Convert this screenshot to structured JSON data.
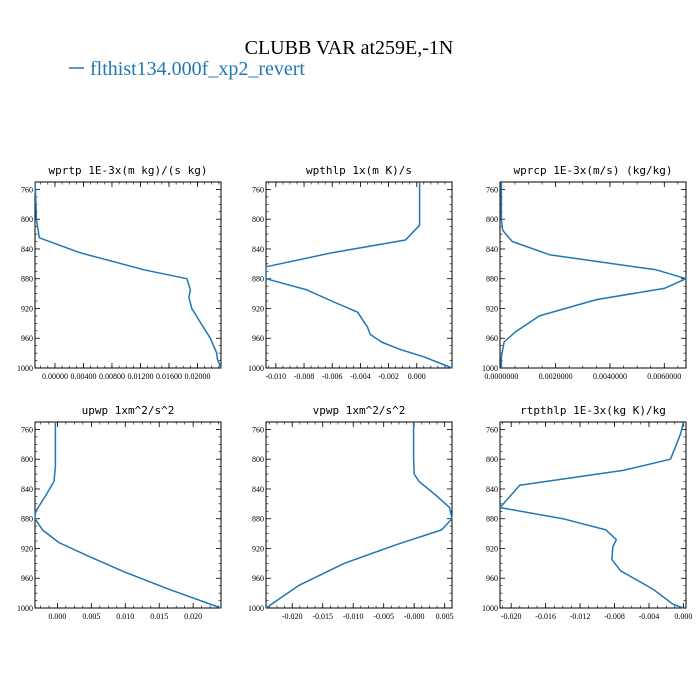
{
  "figure": {
    "title": "CLUBB VAR at259E,-1N",
    "legend": [
      {
        "label": "flthist134.000f_xp2_revert",
        "color": "#1f77b4"
      }
    ]
  },
  "colors": {
    "line": "#1f77b4",
    "axis": "#000000"
  },
  "chart_data": [
    {
      "type": "line",
      "title": "wprtp  1E-3x(m kg)/(s kg)",
      "xlim": [
        -0.0028,
        0.0233
      ],
      "ylim": [
        1000,
        750
      ],
      "x_ticks": [
        0,
        0.004,
        0.008,
        0.012,
        0.016,
        0.02
      ],
      "x_tick_labels": [
        "0.00000",
        "0.00400",
        "0.00800",
        "0.01200",
        "0.01600",
        "0.02000"
      ],
      "y_ticks": [
        760,
        800,
        840,
        880,
        920,
        960,
        1000
      ],
      "y_tick_labels": [
        "760",
        "800",
        "840",
        "880",
        "920",
        "960",
        "1000"
      ],
      "series": [
        {
          "name": "flthist134.000f_xp2_revert",
          "x": [
            -0.0028,
            -0.0027,
            -0.0026,
            -0.0022,
            0.0035,
            0.0125,
            0.0185,
            0.019,
            0.0188,
            0.0192,
            0.0205,
            0.0218,
            0.0227,
            0.0228,
            0.0233
          ],
          "y": [
            750,
            770,
            800,
            825,
            845,
            868,
            880,
            895,
            905,
            920,
            940,
            960,
            980,
            988,
            1000
          ]
        }
      ]
    },
    {
      "type": "line",
      "title": "wpthlp  1x(m K)/s",
      "xlim": [
        -0.0107,
        0.0025
      ],
      "ylim": [
        1000,
        750
      ],
      "x_ticks": [
        -0.01,
        -0.008,
        -0.006,
        -0.004,
        -0.002,
        0
      ],
      "x_tick_labels": [
        "-0.010",
        "-0.008",
        "-0.006",
        "-0.004",
        "-0.002",
        "0.000"
      ],
      "y_ticks": [
        760,
        800,
        840,
        880,
        920,
        960,
        1000
      ],
      "y_tick_labels": [
        "760",
        "800",
        "840",
        "880",
        "920",
        "960",
        "1000"
      ],
      "series": [
        {
          "name": "flthist134.000f_xp2_revert",
          "x": [
            0.0002,
            0.0002,
            0.0002,
            -0.0008,
            -0.006,
            -0.0107,
            -0.0107,
            -0.0078,
            -0.0058,
            -0.0042,
            -0.0035,
            -0.0033,
            -0.0025,
            -0.0012,
            0.0005,
            0.0025
          ],
          "y": [
            750,
            780,
            808,
            828,
            845,
            864,
            880,
            895,
            912,
            925,
            945,
            955,
            965,
            975,
            985,
            1000
          ]
        }
      ]
    },
    {
      "type": "line",
      "title": "wprcp  1E-3x(m/s) (kg/kg)",
      "xlim": [
        -5e-05,
        0.0068
      ],
      "ylim": [
        1000,
        750
      ],
      "x_ticks": [
        0,
        0.002,
        0.004,
        0.006
      ],
      "x_tick_labels": [
        "0.0000000",
        "0.0020000",
        "0.0040000",
        "0.0060000"
      ],
      "y_ticks": [
        760,
        800,
        840,
        880,
        920,
        960,
        1000
      ],
      "y_tick_labels": [
        "760",
        "800",
        "840",
        "880",
        "920",
        "960",
        "1000"
      ],
      "series": [
        {
          "name": "flthist134.000f_xp2_revert",
          "x": [
            0,
            0,
            5e-05,
            0.0004,
            0.0018,
            0.0057,
            0.0068,
            0.006,
            0.0035,
            0.0014,
            0.0005,
            0.0001,
            0,
            0
          ],
          "y": [
            750,
            800,
            815,
            830,
            848,
            868,
            880,
            893,
            908,
            930,
            952,
            965,
            985,
            1000
          ]
        }
      ]
    },
    {
      "type": "line",
      "title": "upwp  1xm^2/s^2",
      "xlim": [
        -0.0033,
        0.0241
      ],
      "ylim": [
        1000,
        750
      ],
      "x_ticks": [
        0,
        0.005,
        0.01,
        0.015,
        0.02
      ],
      "x_tick_labels": [
        "0.000",
        "0.005",
        "0.010",
        "0.015",
        "0.020"
      ],
      "y_ticks": [
        760,
        800,
        840,
        880,
        920,
        960,
        1000
      ],
      "y_tick_labels": [
        "760",
        "800",
        "840",
        "880",
        "920",
        "960",
        "1000"
      ],
      "series": [
        {
          "name": "flthist134.000f_xp2_revert",
          "x": [
            -0.0003,
            -0.0003,
            -0.0003,
            -0.0005,
            -0.0018,
            -0.0032,
            -0.0033,
            -0.0022,
            0.0002,
            0.0045,
            0.01,
            0.0165,
            0.0241
          ],
          "y": [
            750,
            780,
            810,
            830,
            850,
            870,
            880,
            895,
            912,
            930,
            952,
            975,
            1000
          ]
        }
      ]
    },
    {
      "type": "line",
      "title": "vpwp  1xm^2/s^2",
      "xlim": [
        -0.0243,
        0.0062
      ],
      "ylim": [
        1000,
        750
      ],
      "x_ticks": [
        -0.02,
        -0.015,
        -0.01,
        -0.005,
        0,
        0.005
      ],
      "x_tick_labels": [
        "-0.020",
        "-0.015",
        "-0.010",
        "-0.005",
        "-0.000",
        "0.005"
      ],
      "y_ticks": [
        760,
        800,
        840,
        880,
        920,
        960,
        1000
      ],
      "y_tick_labels": [
        "760",
        "800",
        "840",
        "880",
        "920",
        "960",
        "1000"
      ],
      "series": [
        {
          "name": "flthist134.000f_xp2_revert",
          "x": [
            -0.0001,
            -0.0001,
            0,
            0.0008,
            0.0035,
            0.0058,
            0.0062,
            0.0045,
            -0.003,
            -0.0115,
            -0.019,
            -0.0243
          ],
          "y": [
            750,
            800,
            820,
            830,
            848,
            865,
            880,
            895,
            915,
            940,
            970,
            1000
          ]
        }
      ]
    },
    {
      "type": "line",
      "title": "rtpthlp  1E-3x(kg K)/kg",
      "xlim": [
        -0.0213,
        0.0003
      ],
      "ylim": [
        1000,
        750
      ],
      "x_ticks": [
        -0.02,
        -0.016,
        -0.012,
        -0.008,
        -0.004,
        0
      ],
      "x_tick_labels": [
        "-0.020",
        "-0.016",
        "-0.012",
        "-0.008",
        "-0.004",
        "0.000"
      ],
      "y_ticks": [
        760,
        800,
        840,
        880,
        920,
        960,
        1000
      ],
      "y_tick_labels": [
        "760",
        "800",
        "840",
        "880",
        "920",
        "960",
        "1000"
      ],
      "series": [
        {
          "name": "flthist134.000f_xp2_revert",
          "x": [
            0,
            -0.0003,
            -0.0008,
            -0.0015,
            -0.007,
            -0.019,
            -0.0213,
            -0.014,
            -0.009,
            -0.0078,
            -0.0082,
            -0.0083,
            -0.0073,
            -0.0035,
            -0.0012,
            0
          ],
          "y": [
            750,
            765,
            780,
            800,
            815,
            835,
            865,
            880,
            895,
            908,
            918,
            935,
            950,
            975,
            995,
            1000
          ]
        }
      ]
    }
  ]
}
